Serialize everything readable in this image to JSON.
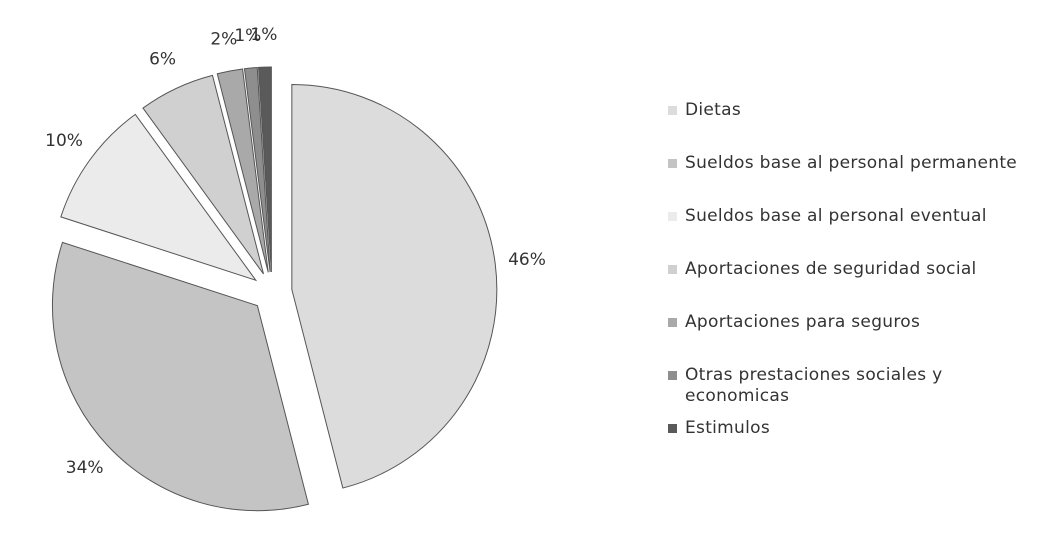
{
  "chart_data": {
    "type": "pie",
    "categories": [
      "Dietas",
      "Sueldos base al personal permanente",
      "Sueldos base al personal eventual",
      "Aportaciones de seguridad social",
      "Aportaciones para seguros",
      "Otras prestaciones sociales y economicas",
      "Estimulos"
    ],
    "values": [
      46,
      34,
      10,
      6,
      2,
      1,
      1
    ],
    "value_labels": [
      "46%",
      "34%",
      "10%",
      "6%",
      "2%",
      "1%",
      "1%"
    ],
    "colors": [
      "#dcdcdc",
      "#c4c4c4",
      "#ebebeb",
      "#d0d0d0",
      "#a9a9a9",
      "#8e8e8e",
      "#5a5a5a"
    ]
  }
}
